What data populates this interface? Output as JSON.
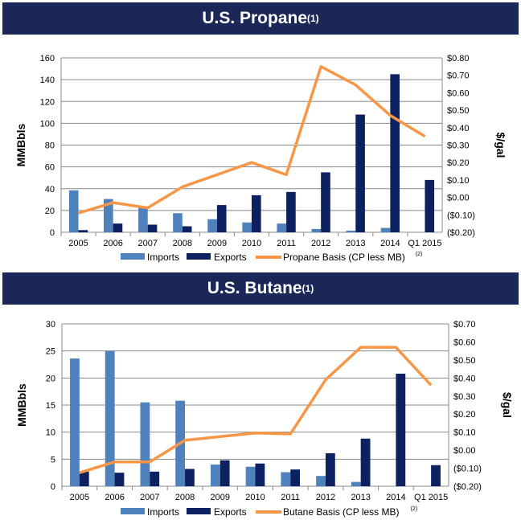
{
  "colors": {
    "imports": "#4f81bd",
    "exports": "#0d2160",
    "basis": "#f79646",
    "banner": "#1b2857"
  },
  "chart_data": [
    {
      "type": "bar+line",
      "title": "U.S. Propane",
      "title_sup": "(1)",
      "categories": [
        "2005",
        "2006",
        "2007",
        "2008",
        "2009",
        "2010",
        "2011",
        "2012",
        "2013",
        "2014",
        "Q1 2015"
      ],
      "ylabel": "MMBbls",
      "ylim": [
        0,
        160
      ],
      "yticks": [
        "0",
        "20",
        "40",
        "60",
        "80",
        "100",
        "120",
        "140",
        "160"
      ],
      "y2label": "$/gal",
      "y2lim": [
        -0.2,
        0.8
      ],
      "y2ticks": [
        "($0.20)",
        "($0.10)",
        "$0.00",
        "$0.10",
        "$0.20",
        "$0.30",
        "$0.40",
        "$0.50",
        "$0.60",
        "$0.70",
        "$0.80"
      ],
      "grid": true,
      "legend": "bottom",
      "series": [
        {
          "name": "Imports",
          "kind": "bar",
          "values": [
            38.5,
            30.5,
            22.5,
            17.5,
            12,
            9,
            8,
            3,
            1.5,
            4,
            0
          ]
        },
        {
          "name": "Exports",
          "kind": "bar",
          "values": [
            2,
            8,
            7,
            5.5,
            25,
            34,
            37,
            55,
            108,
            145,
            48
          ]
        },
        {
          "name": "Propane Basis  (CP less MB)",
          "sup": "(2)",
          "kind": "line",
          "axis": "right",
          "values": [
            -0.09,
            -0.03,
            -0.06,
            0.06,
            0.13,
            0.2,
            0.13,
            0.75,
            0.645,
            0.47,
            0.35
          ]
        }
      ]
    },
    {
      "type": "bar+line",
      "title": "U.S. Butane",
      "title_sup": "(1)",
      "categories": [
        "2005",
        "2006",
        "2007",
        "2008",
        "2009",
        "2010",
        "2011",
        "2012",
        "2013",
        "2014",
        "Q1 2015"
      ],
      "ylabel": "MMBbls",
      "ylim": [
        0,
        30
      ],
      "yticks": [
        "0",
        "5",
        "10",
        "15",
        "20",
        "25",
        "30"
      ],
      "y2label": "$/gal",
      "y2lim": [
        -0.2,
        0.7
      ],
      "y2ticks": [
        "($0.20)",
        "($0.10)",
        "$0.00",
        "$0.10",
        "$0.20",
        "$0.30",
        "$0.40",
        "$0.50",
        "$0.60",
        "$0.70"
      ],
      "grid": true,
      "legend": "bottom",
      "series": [
        {
          "name": "Imports",
          "kind": "bar",
          "values": [
            23.6,
            25,
            15.5,
            15.8,
            4,
            3.6,
            2.6,
            1.9,
            0.8,
            0,
            0
          ]
        },
        {
          "name": "Exports",
          "kind": "bar",
          "values": [
            2.7,
            2.5,
            2.7,
            3.2,
            4.8,
            4.2,
            3.1,
            6.1,
            8.8,
            20.8,
            3.9
          ]
        },
        {
          "name": "Butane Basis  (CP less MB)",
          "sup": "(2)",
          "kind": "line",
          "axis": "right",
          "values": [
            -0.125,
            -0.065,
            -0.065,
            0.055,
            0.075,
            0.095,
            0.09,
            0.39,
            0.57,
            0.57,
            0.36
          ]
        }
      ]
    }
  ]
}
